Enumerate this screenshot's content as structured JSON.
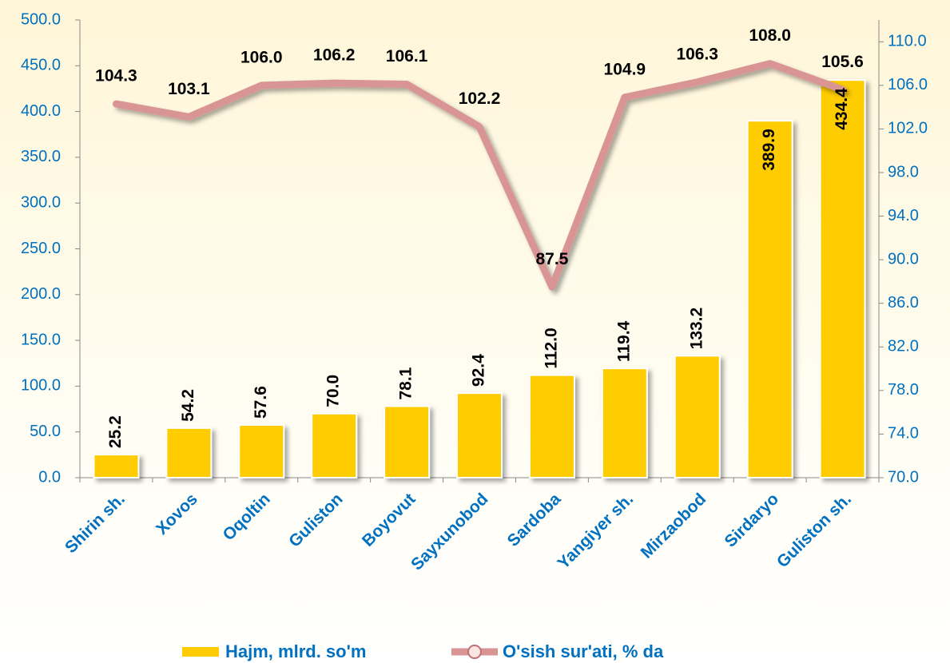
{
  "chart_data": {
    "type": "bar_line",
    "categories": [
      "Shirin sh.",
      "Xovos",
      "Oqoltin",
      "Guliston",
      "Boyovut",
      "Sayxunobod",
      "Sardoba",
      "Yangiyer sh.",
      "Mirzaobod",
      "Sirdaryo",
      "Guliston sh."
    ],
    "series": [
      {
        "name": "Hajm, mlrd. so'm",
        "color": "#ffcc00",
        "values": [
          25.2,
          54.2,
          57.6,
          70.0,
          78.1,
          92.4,
          112.0,
          119.4,
          133.2,
          389.9,
          434.4
        ],
        "value_labels": [
          "25.2",
          "54.2",
          "57.6",
          "70.0",
          "78.1",
          "92.4",
          "112.0",
          "119.4",
          "133.2",
          "389.9",
          "434.4"
        ]
      },
      {
        "name": "O'sish sur'ati, % da",
        "color": "#d99594",
        "axis": "y2",
        "values": [
          104.3,
          103.1,
          106.0,
          106.2,
          106.1,
          102.2,
          87.5,
          104.9,
          106.3,
          108.0,
          105.6
        ],
        "value_labels": [
          "104.3",
          "103.1",
          "106.0",
          "106.2",
          "106.1",
          "102.2",
          "87.5",
          "104.9",
          "106.3",
          "108.0",
          "105.6"
        ]
      }
    ],
    "ylim": [
      0,
      500
    ],
    "yticks": [
      {
        "value": 0,
        "label": "0.0"
      },
      {
        "value": 50,
        "label": "50.0"
      },
      {
        "value": 100,
        "label": "100.0"
      },
      {
        "value": 150,
        "label": "150.0"
      },
      {
        "value": 200,
        "label": "200.0"
      },
      {
        "value": 250,
        "label": "250.0"
      },
      {
        "value": 300,
        "label": "300.0"
      },
      {
        "value": 350,
        "label": "350.0"
      },
      {
        "value": 400,
        "label": "400.0"
      },
      {
        "value": 450,
        "label": "450.0"
      },
      {
        "value": 500,
        "label": "500.0"
      }
    ],
    "y2lim": [
      70,
      112
    ],
    "y2ticks": [
      {
        "value": 70,
        "label": "70.0"
      },
      {
        "value": 74,
        "label": "74.0"
      },
      {
        "value": 78,
        "label": "78.0"
      },
      {
        "value": 82,
        "label": "82.0"
      },
      {
        "value": 86,
        "label": "86.0"
      },
      {
        "value": 90,
        "label": "90.0"
      },
      {
        "value": 94,
        "label": "94.0"
      },
      {
        "value": 98,
        "label": "98.0"
      },
      {
        "value": 102,
        "label": "102.0"
      },
      {
        "value": 106,
        "label": "106.0"
      },
      {
        "value": 110,
        "label": "110.0"
      }
    ],
    "legend": "bottom"
  }
}
